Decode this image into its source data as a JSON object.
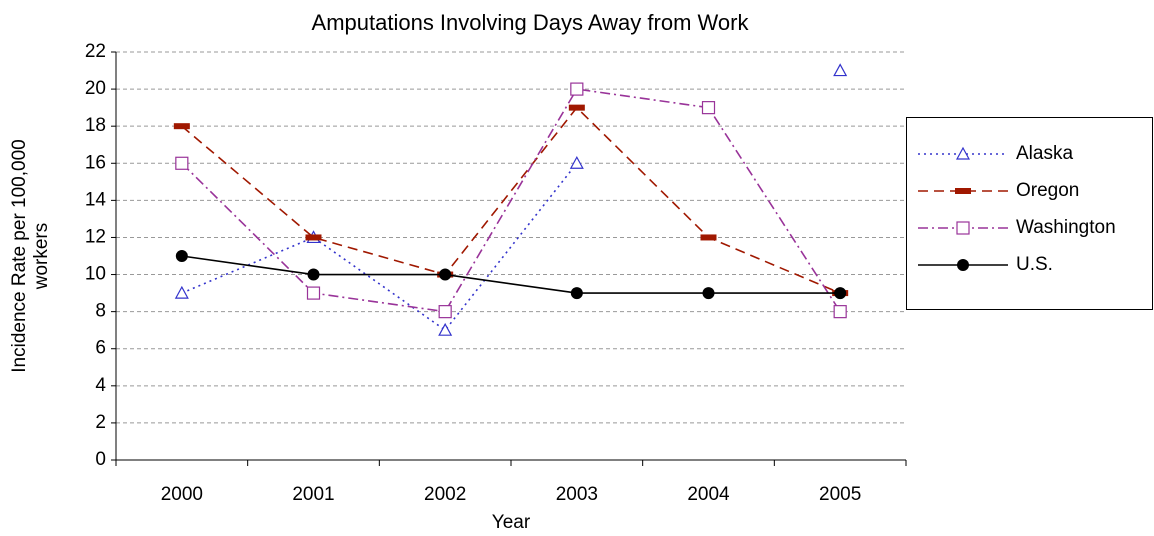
{
  "chart_data": {
    "type": "line",
    "title": "Amputations Involving Days Away from Work",
    "x_label": "Year",
    "y_label": [
      "Incidence Rate per 100,000",
      "workers"
    ],
    "categories": [
      "2000",
      "2001",
      "2002",
      "2003",
      "2004",
      "2005"
    ],
    "series": [
      {
        "name": "Alaska",
        "color": "#3333cc",
        "values": [
          9,
          12,
          7,
          16,
          null,
          21
        ]
      },
      {
        "name": "Oregon",
        "color": "#a01800",
        "values": [
          18,
          12,
          10,
          19,
          12,
          9
        ]
      },
      {
        "name": "Washington",
        "color": "#993399",
        "values": [
          16,
          9,
          8,
          20,
          19,
          8
        ]
      },
      {
        "name": "U.S.",
        "color": "#000000",
        "values": [
          11,
          10,
          10,
          9,
          9,
          9
        ]
      }
    ],
    "ylim": [
      0,
      22
    ],
    "yticks": [
      0,
      2,
      4,
      6,
      8,
      10,
      12,
      14,
      16,
      18,
      20,
      22
    ],
    "grid": true,
    "legend": "right"
  }
}
